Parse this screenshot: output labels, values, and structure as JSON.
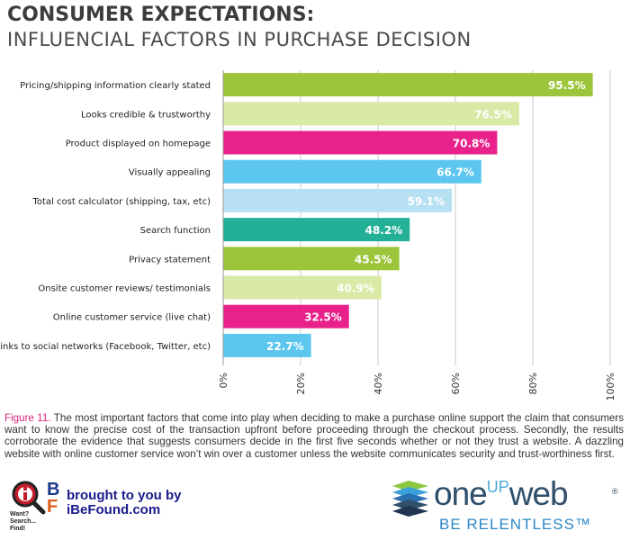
{
  "header": {
    "title": "CONSUMER EXPECTATIONS:",
    "subtitle": "INFLUENCIAL FACTORS IN PURCHASE DECISION"
  },
  "chart_data": {
    "type": "bar",
    "orientation": "horizontal",
    "categories": [
      "Pricing/shipping information clearly stated",
      "Looks credible & trustworthy",
      "Product displayed on homepage",
      "Visually appealing",
      "Total cost calculator (shipping, tax, etc)",
      "Search function",
      "Privacy statement",
      "Onsite customer reviews/ testimonials",
      "Online customer service (live chat)",
      "Links to social networks (Facebook, Twitter, etc)"
    ],
    "values": [
      95.5,
      76.5,
      70.8,
      66.7,
      59.1,
      48.2,
      45.5,
      40.9,
      32.5,
      22.7
    ],
    "value_labels": [
      "95.5%",
      "76.5%",
      "70.8%",
      "66.7%",
      "59.1%",
      "48.2%",
      "45.5%",
      "40.9%",
      "32.5%",
      "22.7%"
    ],
    "bar_colors": [
      "#9cc53b",
      "#d9e9a6",
      "#e8218b",
      "#5cc6ee",
      "#b7e1f3",
      "#24b097",
      "#9cc53b",
      "#d9e9a6",
      "#e8218b",
      "#5cc6ee"
    ],
    "xlim": [
      0,
      100
    ],
    "x_ticks": [
      "0%",
      "20%",
      "40%",
      "60%",
      "80%",
      "100%"
    ],
    "grid": true
  },
  "caption": {
    "figure_label": "Figure 11.",
    "text": "The most important factors that come into play when deciding to make a purchase online support the claim that consumers want to know the precise cost of the transaction upfront before proceeding through the checkout process. Secondly, the results corroborate the evidence that suggests consumers decide in the first five seconds whether or not they trust a website. A dazzling website with online customer service won’t win over a customer unless the website communicates security and trust-worthiness first."
  },
  "footer": {
    "brought_by": "brought to you by",
    "site": "iBeFound.com",
    "tagline": "Want? Search... Find!",
    "brand_prefix": "one",
    "brand_up": "UP",
    "brand_suffix": "web",
    "trademark": "®",
    "slogan": "BE RELENTLESS™"
  }
}
